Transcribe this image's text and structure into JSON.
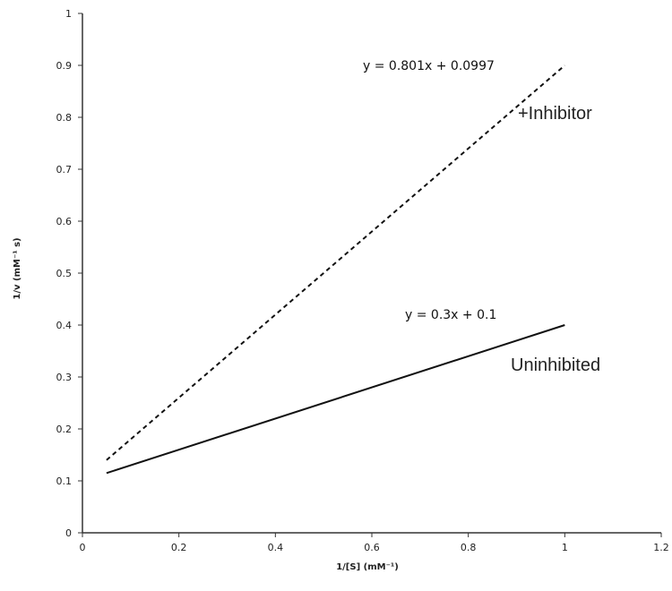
{
  "chart_data": {
    "type": "line",
    "title": "",
    "xlabel": "1/[S] (mM⁻¹)",
    "ylabel": "1/v (mM⁻¹ s)",
    "xlim": [
      0,
      1.2
    ],
    "ylim": [
      0,
      1
    ],
    "xticks": [
      "0",
      "0.2",
      "0.4",
      "0.6",
      "0.8",
      "1",
      "1.2"
    ],
    "yticks": [
      "0",
      "0.1",
      "0.2",
      "0.3",
      "0.4",
      "0.5",
      "0.6",
      "0.7",
      "0.8",
      "0.9",
      "1"
    ],
    "grid": false,
    "series": [
      {
        "name": "+Inhibitor",
        "equation": "y = 0.801x + 0.0997",
        "style": "dashed",
        "color": "#111111",
        "x": [
          0.05,
          1.0
        ],
        "y": [
          0.14,
          0.9
        ]
      },
      {
        "name": "Uninhibited",
        "equation": "y = 0.3x + 0.1",
        "style": "solid",
        "color": "#111111",
        "x": [
          0.05,
          1.0
        ],
        "y": [
          0.115,
          0.4
        ]
      }
    ]
  }
}
